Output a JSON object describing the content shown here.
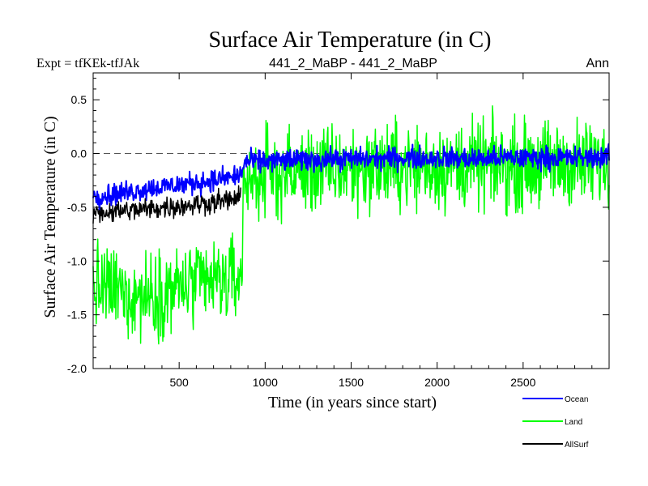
{
  "chart_data": {
    "type": "line",
    "title": "Surface Air Temperature (in C)",
    "subtitle_left": "Expt = tfKEk-tfJAk",
    "subtitle_center": "441_2_MaBP - 441_2_MaBP",
    "subtitle_right": "Ann",
    "xlabel": "Time (in years since start)",
    "ylabel": "Surface Air Temperature (in C)",
    "xlim": [
      0,
      3000
    ],
    "ylim": [
      -2.0,
      0.75
    ],
    "xticks": [
      500,
      1000,
      1500,
      2000,
      2500
    ],
    "yticks": [
      -2.0,
      -1.5,
      -1.0,
      -0.5,
      0.0,
      0.5
    ],
    "ytick_labels": [
      "-2.0",
      "-1.5",
      "-1.0",
      "-0.5",
      "0.0",
      "0.5"
    ],
    "reference_line": 0.0,
    "grid": false,
    "legend": "bottom-right",
    "series": [
      {
        "name": "Ocean",
        "color": "#0000ff",
        "x": [
          0,
          100,
          200,
          300,
          400,
          500,
          600,
          700,
          800,
          860,
          880,
          1000,
          1200,
          1400,
          1600,
          1800,
          2000,
          2200,
          2400,
          2600,
          2800,
          3000
        ],
        "values": [
          -0.4,
          -0.38,
          -0.36,
          -0.33,
          -0.31,
          -0.29,
          -0.27,
          -0.25,
          -0.22,
          -0.2,
          -0.08,
          -0.07,
          -0.06,
          -0.05,
          -0.05,
          -0.04,
          -0.04,
          -0.05,
          -0.04,
          -0.04,
          -0.04,
          -0.03
        ],
        "noise": 0.05,
        "stroke_width": 2.0
      },
      {
        "name": "Land",
        "color": "#00ff00",
        "x": [
          0,
          100,
          200,
          300,
          400,
          500,
          600,
          700,
          800,
          860,
          880,
          1000,
          1200,
          1400,
          1600,
          1800,
          2000,
          2200,
          2400,
          2600,
          2800,
          3000
        ],
        "values": [
          -1.25,
          -1.27,
          -1.3,
          -1.32,
          -1.28,
          -1.25,
          -1.22,
          -1.2,
          -1.18,
          -1.15,
          -0.25,
          -0.2,
          -0.17,
          -0.15,
          -0.13,
          -0.12,
          -0.12,
          -0.11,
          -0.11,
          -0.1,
          -0.1,
          -0.1
        ],
        "noise": 0.2,
        "stroke_width": 1.5
      },
      {
        "name": "AllSurf",
        "color": "#000000",
        "x": [
          0,
          100,
          200,
          300,
          400,
          500,
          600,
          700,
          800,
          860
        ],
        "values": [
          -0.55,
          -0.54,
          -0.53,
          -0.52,
          -0.5,
          -0.49,
          -0.47,
          -0.45,
          -0.43,
          -0.41
        ],
        "noise": 0.05,
        "stroke_width": 1.5
      }
    ]
  }
}
